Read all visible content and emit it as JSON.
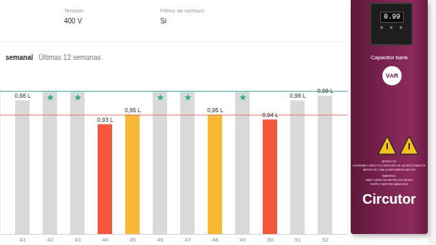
{
  "header": {
    "fields": [
      {
        "label": "Tensión",
        "value": "400 V"
      },
      {
        "label": "Filtros de rechazo",
        "value": "Si"
      }
    ],
    "tabs": [
      "semanal",
      "Últimas 12 semanas"
    ]
  },
  "chart_data": {
    "type": "bar",
    "categories": [
      "41",
      "42",
      "43",
      "44",
      "45",
      "46",
      "47",
      "48",
      "49",
      "50",
      "51",
      "52"
    ],
    "values": [
      0.98,
      1.0,
      1.0,
      0.93,
      0.95,
      1.0,
      1.0,
      0.95,
      1.0,
      0.94,
      0.98,
      0.99
    ],
    "value_labels": [
      "0,98 L",
      "★",
      "★",
      "0,93 L",
      "0,95 L",
      "★",
      "★",
      "0,95 L",
      "★",
      "0,94 L",
      "0,98 L",
      "0,99 L"
    ],
    "colors": [
      "#d9d9d9",
      "#d9d9d9",
      "#d9d9d9",
      "#f4553b",
      "#f9b934",
      "#d9d9d9",
      "#d9d9d9",
      "#f9b934",
      "#d9d9d9",
      "#f4553b",
      "#d9d9d9",
      "#d9d9d9"
    ],
    "thresholds": [
      {
        "value": 1.0,
        "color": "#2bbfa0"
      },
      {
        "value": 0.95,
        "color": "#f26a6a"
      }
    ],
    "ylim": [
      0.7,
      1.0
    ],
    "data_labels": true,
    "tick_labels": "x",
    "grid": false
  },
  "device": {
    "display": "0.99",
    "label": "Capacitor bank",
    "badge": "VAR",
    "warnings": [
      "ATENCIÓN:",
      "ESPERAR 5 MINUTOS DESPUÉS DE LA DESCONEXIÓN",
      "ANTES DE CUALQUIER MANIPULACIÓN",
      "WARNING:",
      "WAIT 5 MINUTES AFTER ISOLATING",
      "SUPPLY BEFORE HANDLING"
    ],
    "brand": "Circutor"
  }
}
